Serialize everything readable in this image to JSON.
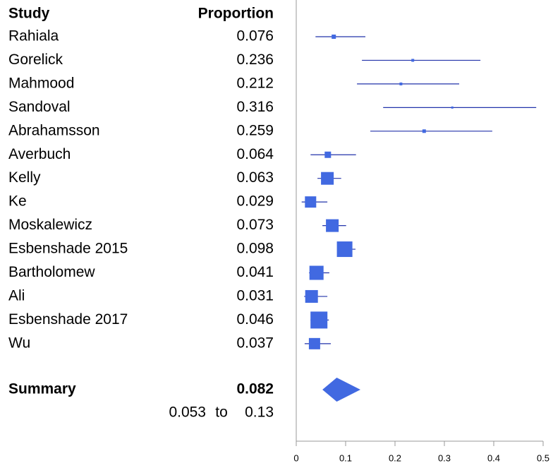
{
  "chart_data": {
    "type": "forest",
    "columns": [
      "Study",
      "Proportion"
    ],
    "categories": [
      "Rahiala",
      "Gorelick",
      "Mahmood",
      "Sandoval",
      "Abrahamsson",
      "Averbuch",
      "Kelly",
      "Ke",
      "Moskalewicz",
      "Esbenshade 2015",
      "Bartholomew",
      "Ali",
      "Esbenshade 2017",
      "Wu"
    ],
    "values": [
      0.076,
      0.236,
      0.212,
      0.316,
      0.259,
      0.064,
      0.063,
      0.029,
      0.073,
      0.098,
      0.041,
      0.031,
      0.046,
      0.037
    ],
    "ci_low": [
      0.039,
      0.133,
      0.123,
      0.176,
      0.15,
      0.029,
      0.043,
      0.011,
      0.053,
      0.084,
      0.026,
      0.016,
      0.029,
      0.017
    ],
    "ci_high": [
      0.14,
      0.373,
      0.33,
      0.486,
      0.397,
      0.121,
      0.091,
      0.063,
      0.101,
      0.12,
      0.067,
      0.063,
      0.066,
      0.07
    ],
    "weights": [
      6,
      4,
      4,
      3,
      5,
      9,
      18,
      16,
      18,
      22,
      20,
      18,
      24,
      16
    ],
    "color": "#4169e1",
    "summary": {
      "label": "Summary",
      "value": 0.082,
      "lower": 0.053,
      "upper": 0.13,
      "sep": "to"
    },
    "xlim": [
      0,
      0.5
    ],
    "xticks": [
      0,
      0.1,
      0.2,
      0.3,
      0.4,
      0.5
    ]
  }
}
